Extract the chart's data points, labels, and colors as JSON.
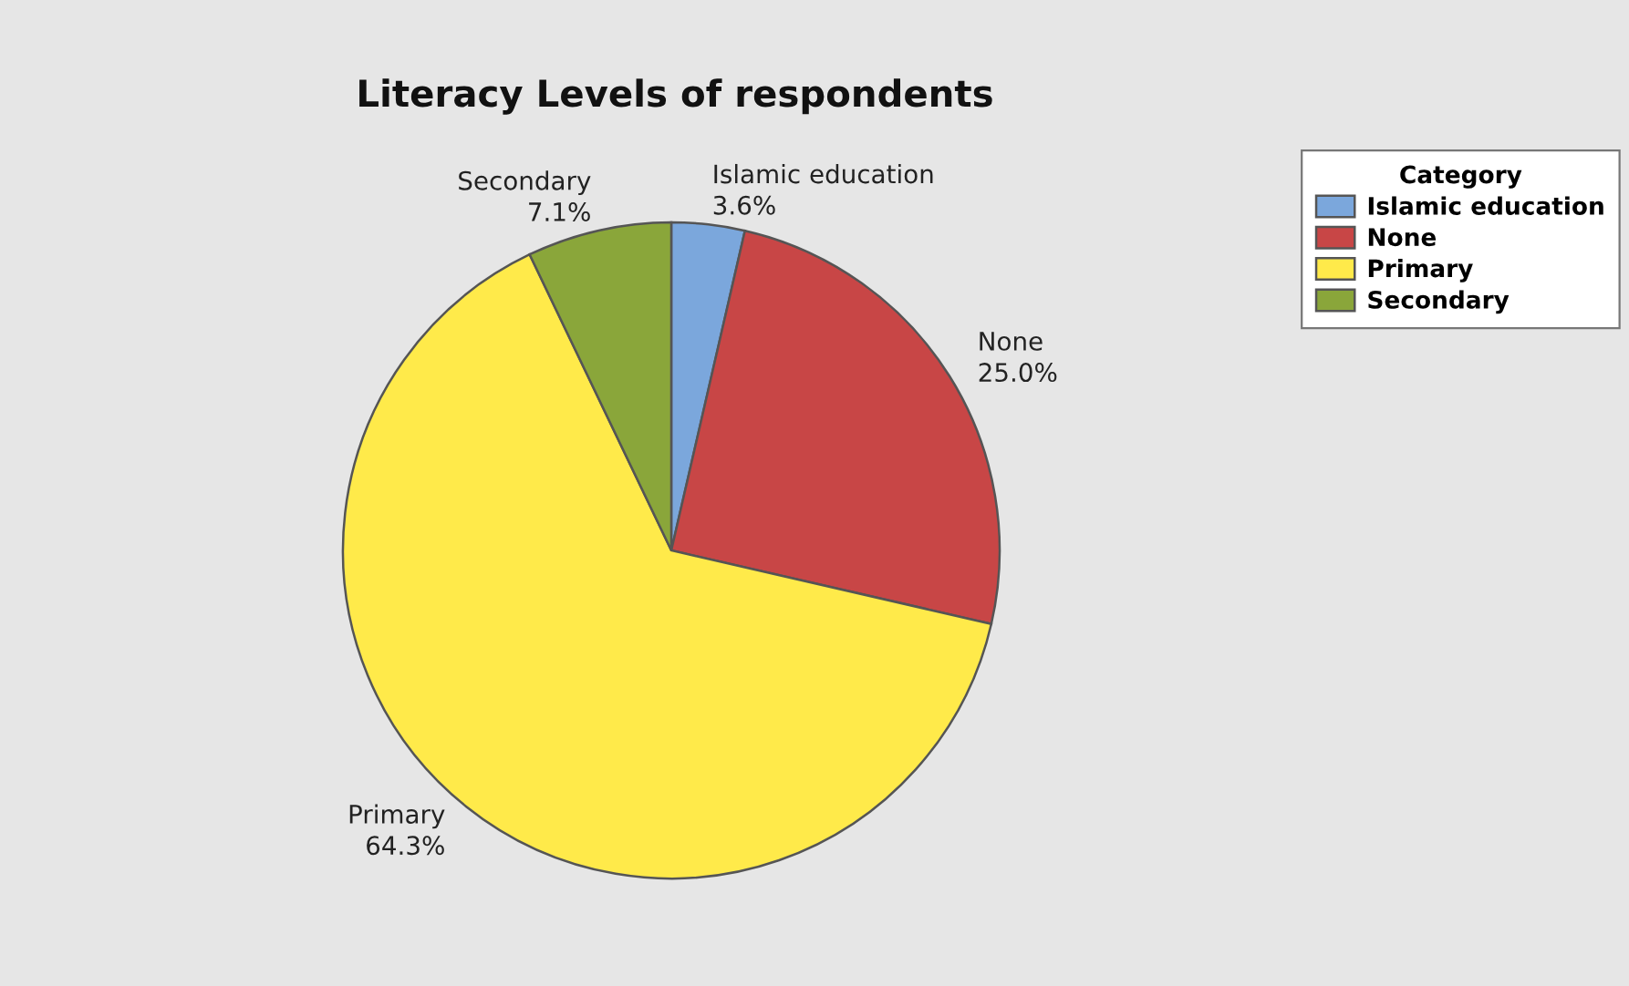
{
  "chart_data": {
    "type": "pie",
    "title": "Literacy Levels of respondents",
    "legend_title": "Category",
    "categories": [
      "Islamic education",
      "None",
      "Primary",
      "Secondary"
    ],
    "values": [
      3.6,
      25.0,
      64.3,
      7.1
    ],
    "value_labels": [
      "3.6%",
      "25.0%",
      "64.3%",
      "7.1%"
    ],
    "colors": [
      "#7ba7dc",
      "#c84646",
      "#ffea4a",
      "#8aa63a"
    ],
    "legend": "top right"
  }
}
